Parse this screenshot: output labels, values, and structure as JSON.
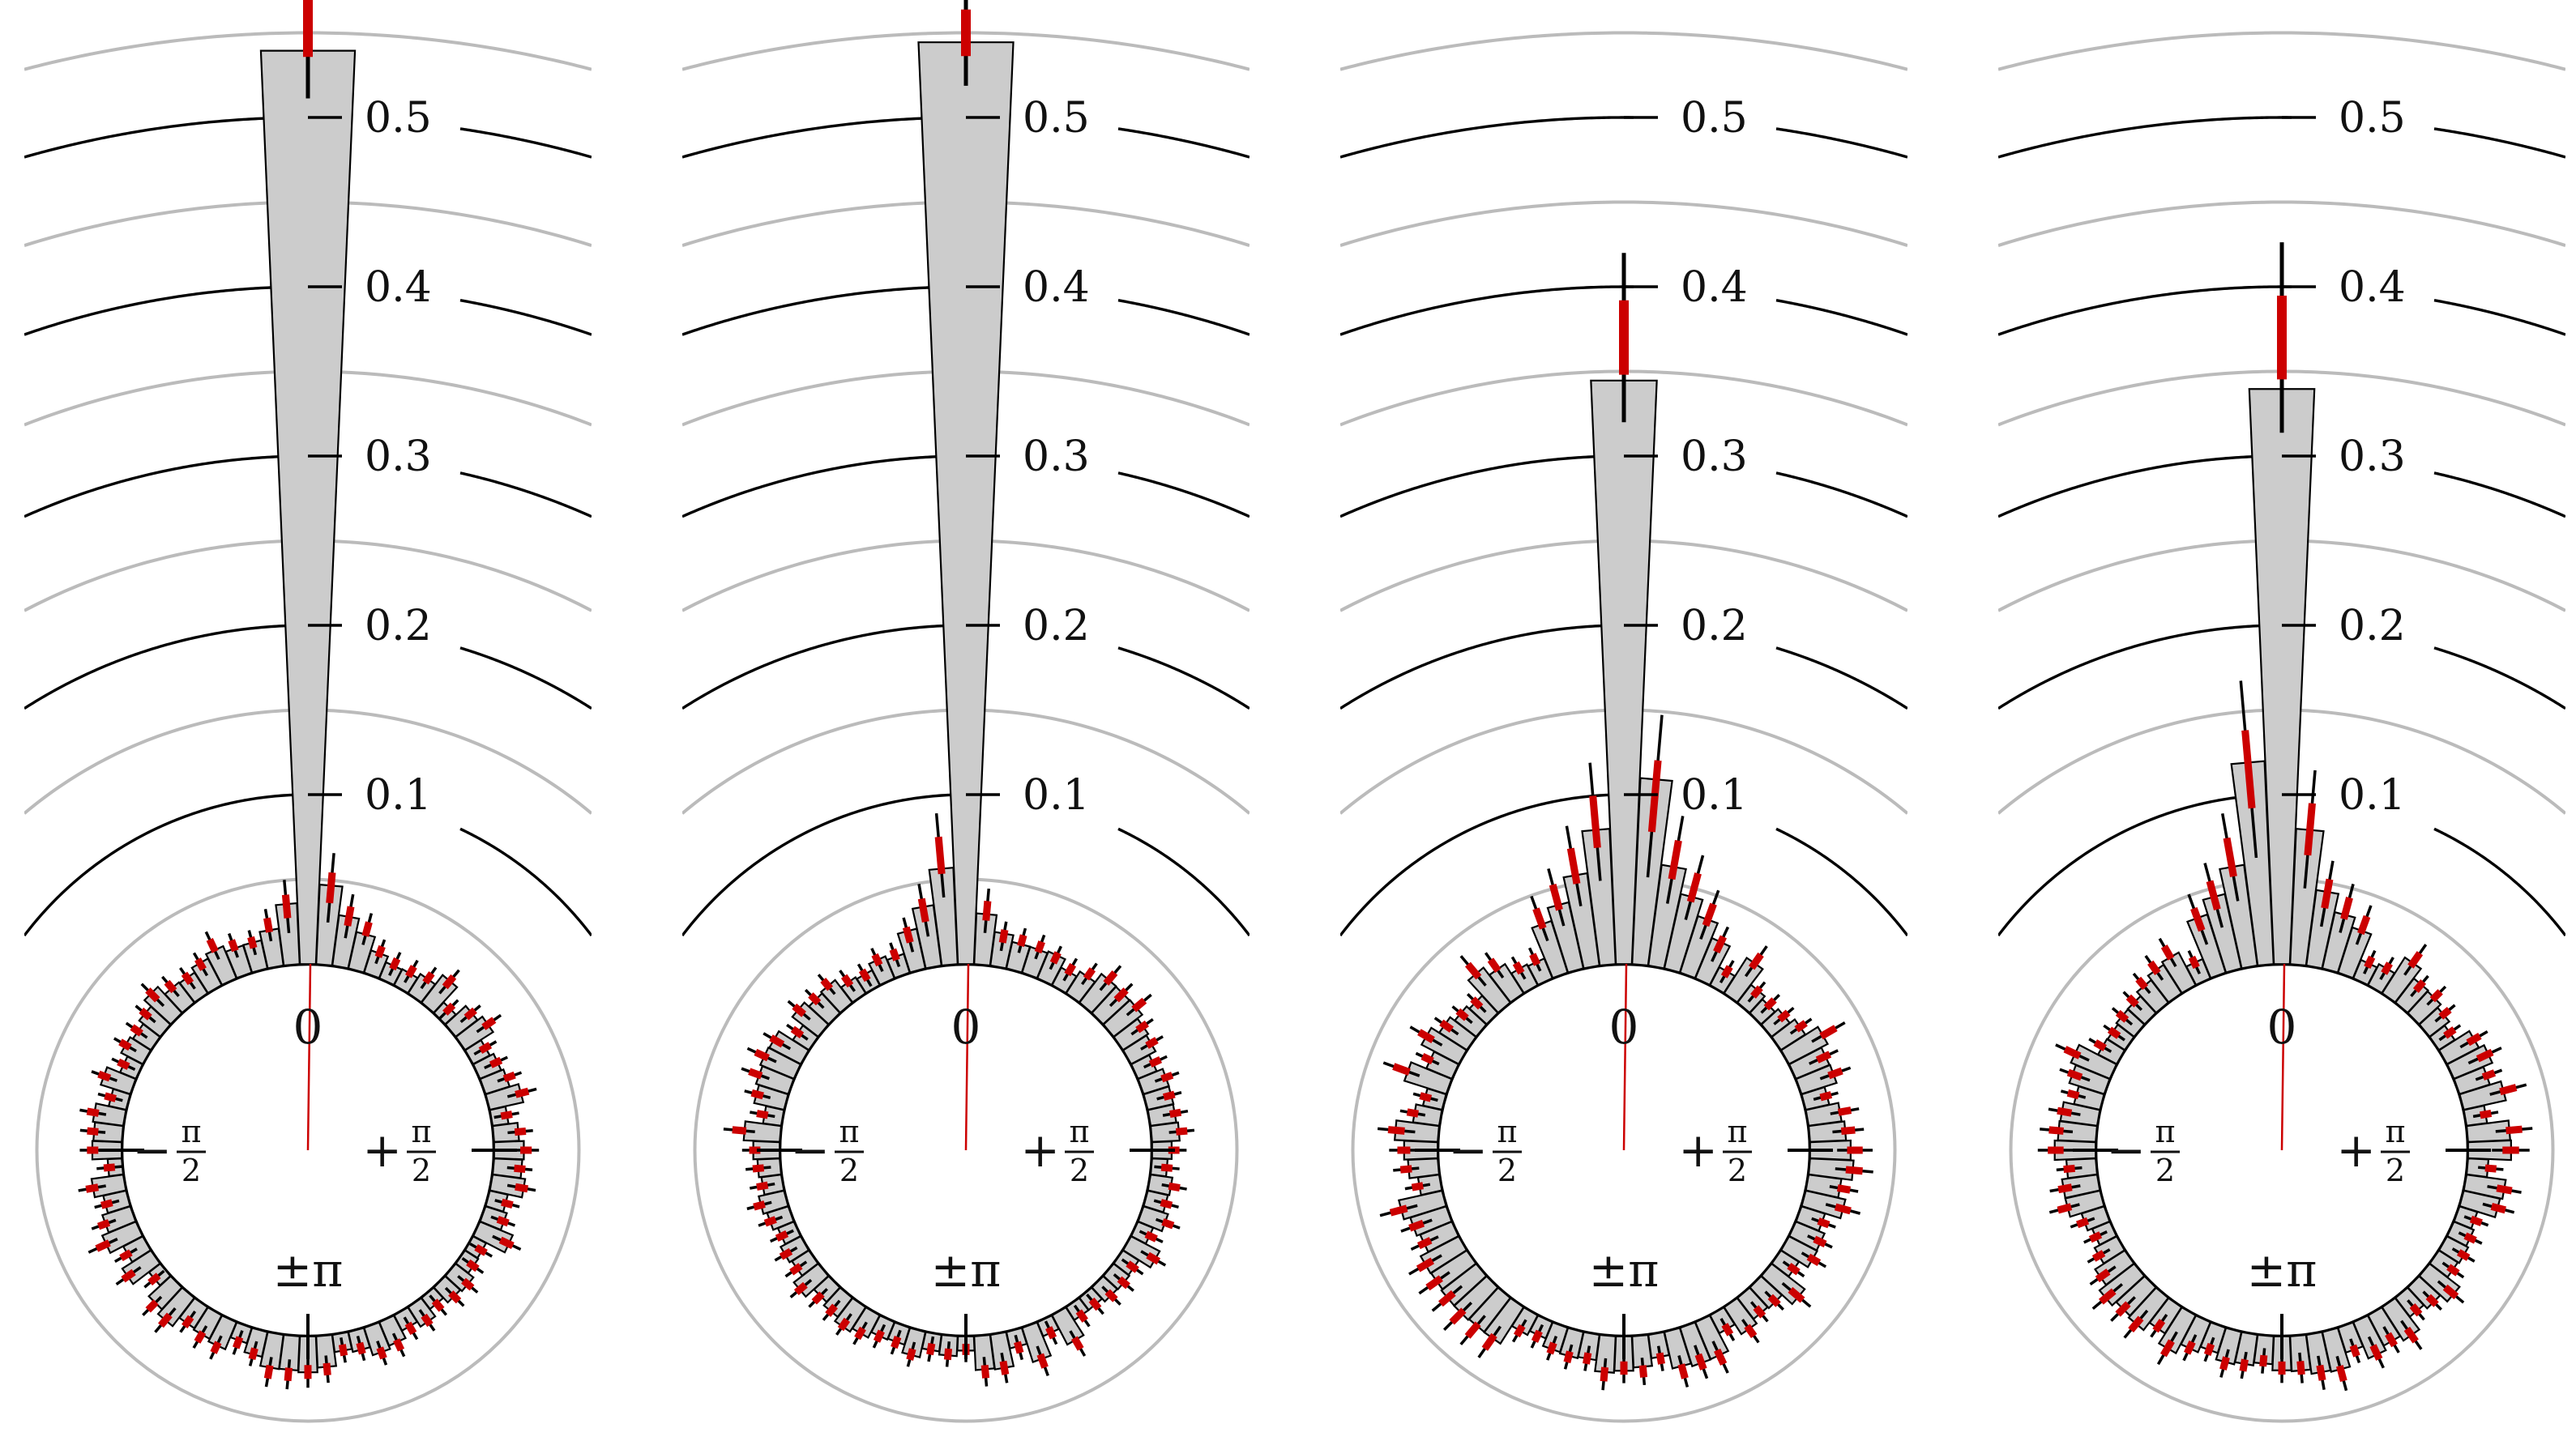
{
  "chart_data": [
    {
      "type": "polar-histogram",
      "panel": 1,
      "radial_ticks": [
        "0.1",
        "0.2",
        "0.3",
        "0.4",
        "0.5"
      ],
      "radial_tick_values": [
        0.1,
        0.2,
        0.3,
        0.4,
        0.5
      ],
      "minor_rings": [
        0.05,
        0.15,
        0.25,
        0.35,
        0.45,
        0.55
      ],
      "angle_labels": {
        "top": "0",
        "left": "−",
        "right": "+",
        "bottom": "±π",
        "pi": "π",
        "two": "2"
      },
      "peak": {
        "angle": 0,
        "value": 0.54,
        "model": 0.555,
        "model_err": 0.035
      },
      "sidebands": [
        {
          "offset": 1,
          "plus": 0.047,
          "minus": 0.036
        },
        {
          "offset": 2,
          "plus": 0.03,
          "minus": 0.022
        },
        {
          "offset": 3,
          "plus": 0.022,
          "minus": 0.017
        }
      ],
      "background_level": 0.015,
      "colors": {
        "bar": "#cccccc",
        "model": "#cc0000",
        "ring_major": "#000000",
        "ring_minor": "#bbbbbb"
      }
    },
    {
      "type": "polar-histogram",
      "panel": 2,
      "radial_ticks": [
        "0.1",
        "0.2",
        "0.3",
        "0.4",
        "0.5"
      ],
      "radial_tick_values": [
        0.1,
        0.2,
        0.3,
        0.4,
        0.5
      ],
      "minor_rings": [
        0.05,
        0.15,
        0.25,
        0.35,
        0.45,
        0.55
      ],
      "angle_labels": {
        "top": "0",
        "left": "−",
        "right": "+",
        "bottom": "±π",
        "pi": "π",
        "two": "2"
      },
      "peak": {
        "angle": 0,
        "value": 0.545,
        "model": 0.55,
        "model_err": 0.025
      },
      "sidebands": [
        {
          "offset": 1,
          "plus": 0.03,
          "minus": 0.057
        },
        {
          "offset": 2,
          "plus": 0.02,
          "minus": 0.036
        },
        {
          "offset": 3,
          "plus": 0.016,
          "minus": 0.024
        }
      ],
      "background_level": 0.015,
      "colors": {
        "bar": "#cccccc",
        "model": "#cc0000",
        "ring_major": "#000000",
        "ring_minor": "#bbbbbb"
      }
    },
    {
      "type": "polar-histogram",
      "panel": 3,
      "radial_ticks": [
        "0.1",
        "0.2",
        "0.3",
        "0.4",
        "0.5"
      ],
      "radial_tick_values": [
        0.1,
        0.2,
        0.3,
        0.4,
        0.5
      ],
      "minor_rings": [
        0.05,
        0.15,
        0.25,
        0.35,
        0.45,
        0.55
      ],
      "angle_labels": {
        "top": "0",
        "left": "−",
        "right": "+",
        "bottom": "±π",
        "pi": "π",
        "two": "2"
      },
      "peak": {
        "angle": 0,
        "value": 0.345,
        "model": 0.37,
        "model_err": 0.04
      },
      "sidebands": [
        {
          "offset": 1,
          "plus": 0.11,
          "minus": 0.08
        },
        {
          "offset": 2,
          "plus": 0.06,
          "minus": 0.055
        },
        {
          "offset": 3,
          "plus": 0.045,
          "minus": 0.04
        },
        {
          "offset": 4,
          "plus": 0.035,
          "minus": 0.032
        }
      ],
      "background_level": 0.018,
      "colors": {
        "bar": "#cccccc",
        "model": "#cc0000",
        "ring_major": "#000000",
        "ring_minor": "#bbbbbb"
      }
    },
    {
      "type": "polar-histogram",
      "panel": 4,
      "radial_ticks": [
        "0.1",
        "0.2",
        "0.3",
        "0.4",
        "0.5"
      ],
      "radial_tick_values": [
        0.1,
        0.2,
        0.3,
        0.4,
        0.5
      ],
      "minor_rings": [
        0.05,
        0.15,
        0.25,
        0.35,
        0.45,
        0.55
      ],
      "angle_labels": {
        "top": "0",
        "left": "−",
        "right": "+",
        "bottom": "±π",
        "pi": "π",
        "two": "2"
      },
      "peak": {
        "angle": 0,
        "value": 0.34,
        "model": 0.37,
        "model_err": 0.045
      },
      "sidebands": [
        {
          "offset": 1,
          "plus": 0.08,
          "minus": 0.12
        },
        {
          "offset": 2,
          "plus": 0.045,
          "minus": 0.06
        },
        {
          "offset": 3,
          "plus": 0.034,
          "minus": 0.045
        },
        {
          "offset": 4,
          "plus": 0.028,
          "minus": 0.036
        }
      ],
      "background_level": 0.018,
      "colors": {
        "bar": "#cccccc",
        "model": "#cc0000",
        "ring_major": "#000000",
        "ring_minor": "#bbbbbb"
      }
    }
  ]
}
